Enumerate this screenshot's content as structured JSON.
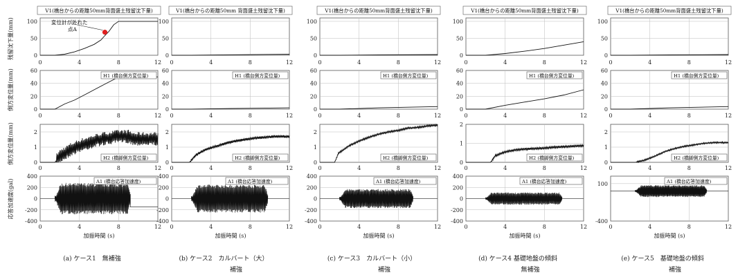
{
  "y_axis_labels": [
    "残留沈下量(mm)",
    "側方変位量(mm)",
    "側方変位量(mm)",
    "応答加速度(gal)"
  ],
  "x_label": "加振時間 (s)",
  "chart_data": [
    {
      "type": "line",
      "caption": "(a) ケース1　無補強",
      "panels": [
        {
          "label": "V1(橋台からの距離50mm背面盛土残留沈下量)",
          "ylim": [
            0,
            110
          ],
          "yticks": [
            0,
            50,
            100
          ],
          "x": [
            0,
            1.5,
            2.5,
            3.5,
            4.5,
            5.5,
            6.2,
            6.6,
            7,
            7.5,
            8,
            12
          ],
          "y": [
            0,
            0,
            3,
            10,
            20,
            32,
            45,
            58,
            70,
            90,
            100,
            100
          ],
          "annotation": {
            "text": [
              "変位計が外れた",
              "点A"
            ],
            "x": 6.6,
            "y": 68
          }
        },
        {
          "label": "H1 (橋台側方変位量)",
          "ylim": [
            0,
            60
          ],
          "yticks": [
            0,
            20,
            40,
            60
          ],
          "x": [
            0,
            1.5,
            2.5,
            3.5,
            4.5,
            5.5,
            6.5,
            7.5,
            8,
            12
          ],
          "y": [
            0,
            0,
            8,
            14,
            22,
            30,
            38,
            46,
            50,
            50
          ]
        },
        {
          "label": "H2 (橋脚側方変位量)",
          "ylim": [
            0,
            2.5
          ],
          "yticks": [
            0,
            1,
            2
          ],
          "x": [
            0,
            1.5,
            2,
            3,
            4,
            5,
            6,
            7,
            8,
            9,
            9.5,
            12
          ],
          "y": [
            0,
            0,
            0.4,
            0.8,
            1.1,
            1.3,
            1.5,
            1.6,
            1.7,
            1.7,
            1.55,
            1.55
          ],
          "noise": 0.9
        },
        {
          "label": "A1 (橋台応答加速度)",
          "ylim": [
            -400,
            400
          ],
          "yticks": [
            -400,
            -200,
            0,
            200,
            400
          ],
          "osc": {
            "start": 1.5,
            "end": 9.2,
            "amp": 280,
            "after": -150
          }
        }
      ]
    },
    {
      "type": "line",
      "caption": "(b) ケース2　カルバート（大）",
      "caption2": "補強",
      "panels": [
        {
          "label": "V1(橋台からの距離50mm 背面盛土残留沈下量)",
          "ylim": [
            0,
            110
          ],
          "yticks": [
            0,
            50,
            100
          ],
          "x": [
            0,
            2,
            6,
            12
          ],
          "y": [
            0,
            0,
            1.5,
            3
          ]
        },
        {
          "label": "H1 (橋台側方変位量)",
          "ylim": [
            0,
            60
          ],
          "yticks": [
            0,
            20,
            40,
            60
          ],
          "x": [
            0,
            2,
            6,
            12
          ],
          "y": [
            0,
            0,
            1,
            2
          ]
        },
        {
          "label": "H2 (橋脚側方変位量)",
          "ylim": [
            0,
            2.5
          ],
          "yticks": [
            0,
            1,
            2
          ],
          "x": [
            0,
            1.8,
            2.5,
            3.5,
            4.5,
            5.5,
            6.5,
            7.5,
            8.5,
            9.5,
            10.5,
            11.5
          ],
          "y": [
            0,
            0,
            0.5,
            0.85,
            1.05,
            1.25,
            1.4,
            1.5,
            1.6,
            1.65,
            1.7,
            1.7
          ],
          "noise": 0.18
        },
        {
          "label": "A1 (橋台応答加速度)",
          "ylim": [
            -400,
            400
          ],
          "yticks": [
            -400,
            -200,
            0,
            200,
            400
          ],
          "osc": {
            "start": 2,
            "end": 9.8,
            "amp": 250,
            "after": 0
          }
        }
      ]
    },
    {
      "type": "line",
      "caption": "(c) ケース3　カルバート（小）",
      "caption2": "補強",
      "panels": [
        {
          "label": "V1(橋台からの距離50mm背面盛土残留沈下量)",
          "ylim": [
            0,
            110
          ],
          "yticks": [
            0,
            50,
            100
          ],
          "x": [
            0,
            2,
            6,
            12
          ],
          "y": [
            0,
            0,
            1,
            2
          ]
        },
        {
          "label": "H1 (橋台側方変位量)",
          "ylim": [
            0,
            60
          ],
          "yticks": [
            0,
            20,
            40,
            60
          ],
          "x": [
            0,
            2,
            6,
            12
          ],
          "y": [
            0,
            0,
            2,
            4
          ]
        },
        {
          "label": "H2 (橋脚側方変位量)",
          "ylim": [
            0,
            2.5
          ],
          "yticks": [
            0,
            1,
            2
          ],
          "x": [
            0,
            1.5,
            1.9,
            3,
            4,
            5,
            6,
            7,
            8,
            9,
            10,
            11,
            12
          ],
          "y": [
            0,
            0,
            0.6,
            1.1,
            1.4,
            1.65,
            1.85,
            2.0,
            2.1,
            2.25,
            2.3,
            2.4,
            2.45
          ],
          "noise": 0.12
        },
        {
          "label": "A1 (橋台応答加速度)",
          "ylim": [
            -400,
            400
          ],
          "yticks": [
            -400,
            -200,
            0,
            200,
            400
          ],
          "osc": {
            "start": 2,
            "end": 9.5,
            "amp": 170,
            "after": 0
          }
        }
      ]
    },
    {
      "type": "line",
      "caption": "(d) ケース4 基礎地盤の傾斜",
      "caption2": "無補強",
      "panels": [
        {
          "label": "V1(橋台からの距離50mm背面盛土残留沈下量)",
          "ylim": [
            0,
            110
          ],
          "yticks": [
            0,
            50,
            100
          ],
          "x": [
            0,
            2,
            4,
            6,
            8,
            10,
            12
          ],
          "y": [
            0,
            0,
            5,
            12,
            20,
            30,
            40
          ]
        },
        {
          "label": "H1 (橋台側方変位量)",
          "ylim": [
            0,
            60
          ],
          "yticks": [
            0,
            20,
            40,
            60
          ],
          "x": [
            0,
            2,
            4,
            6,
            8,
            10,
            12
          ],
          "y": [
            0,
            0,
            6,
            11,
            16,
            22,
            30
          ]
        },
        {
          "label": "H2 (橋脚側方変位量)",
          "ylim": [
            0,
            2
          ],
          "yticks": [
            0,
            1,
            2
          ],
          "x": [
            0,
            2.5,
            3,
            4,
            5,
            6,
            7,
            8,
            9,
            10,
            11,
            12
          ],
          "y": [
            0,
            0,
            0.35,
            0.55,
            0.65,
            0.7,
            0.72,
            0.75,
            0.8,
            0.82,
            0.85,
            0.88
          ],
          "noise": 0.12
        },
        {
          "label": "A1 (橋台応答加速度)",
          "ylim": [
            -400,
            400
          ],
          "yticks": [
            -400,
            -200,
            0,
            200,
            400
          ],
          "osc": {
            "start": 2,
            "end": 9.8,
            "amp": 110,
            "after": 0
          }
        }
      ]
    },
    {
      "type": "line",
      "caption": "(e) ケース5　基礎地盤の傾斜",
      "caption2": "補強",
      "panels": [
        {
          "label": "V1(橋台からの距離50mm背面盛土残留沈下量)",
          "ylim": [
            0,
            110
          ],
          "yticks": [
            0,
            50,
            100
          ],
          "x": [
            0,
            2,
            6,
            12
          ],
          "y": [
            0,
            0,
            1,
            2
          ]
        },
        {
          "label": "H1 (橋台側方変位量)",
          "ylim": [
            0,
            60
          ],
          "yticks": [
            0,
            20,
            40,
            60
          ],
          "x": [
            0,
            2,
            6,
            12
          ],
          "y": [
            0,
            0,
            2,
            4
          ]
        },
        {
          "label": "H2 (橋脚側方変位量)",
          "ylim": [
            0,
            2.5
          ],
          "yticks": [
            0,
            1,
            2
          ],
          "x": [
            0,
            2.5,
            3.5,
            4.5,
            5.5,
            6.5,
            7.5,
            8.5,
            9.5,
            10.5,
            12
          ],
          "y": [
            0,
            0,
            0.15,
            0.4,
            0.7,
            0.9,
            1.05,
            1.15,
            1.25,
            1.3,
            1.3
          ],
          "noise": 0.1
        },
        {
          "label": "A1 (橋台応答加速度)",
          "ylim": [
            -400,
            200
          ],
          "yticks": [
            -400,
            100
          ],
          "osc": {
            "start": 2.5,
            "end": 9.8,
            "amp": 80,
            "after": 0
          }
        }
      ]
    }
  ]
}
